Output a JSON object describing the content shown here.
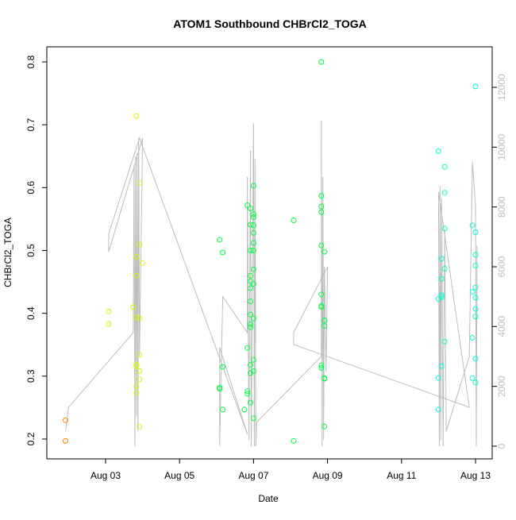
{
  "chart_data": {
    "type": "scatter",
    "title": "ATOM1 Southbound CHBrCl2_TOGA",
    "xlabel": "Date",
    "ylabel": "CHBrCl2_TOGA",
    "x_ticks": [
      "Aug 03",
      "Aug 05",
      "Aug 07",
      "Aug 09",
      "Aug 11",
      "Aug 13"
    ],
    "ylim": [
      0.2,
      0.8
    ],
    "y_ticks": [
      "0.2",
      "0.3",
      "0.4",
      "0.5",
      "0.6",
      "0.7",
      "0.8"
    ],
    "y2_range": [
      0,
      12000
    ],
    "y2_ticks": [
      "0",
      "2000",
      "4000",
      "6000",
      "8000",
      "10000",
      "12000"
    ],
    "grid": false,
    "colors": {
      "scatter_scale": [
        "#ff8000",
        "#ccff00",
        "#00ff40",
        "#00ffcc"
      ],
      "altitude_line": "#bdbdbd"
    },
    "series": [
      {
        "values": [
          [
            "2016-08-01 22:00",
            0.23
          ],
          [
            "2016-08-01 22:00",
            0.197
          ],
          [
            "2016-08-03 02:00",
            0.403
          ],
          [
            "2016-08-03 02:00",
            0.383
          ],
          [
            "2016-08-03 20:00",
            0.714
          ],
          [
            "2016-08-03 22:00",
            0.607
          ],
          [
            "2016-08-03 22:00",
            0.51
          ],
          [
            "2016-08-03 20:00",
            0.49
          ],
          [
            "2016-08-04 00:00",
            0.48
          ],
          [
            "2016-08-03 20:00",
            0.46
          ],
          [
            "2016-08-03 18:00",
            0.41
          ],
          [
            "2016-08-03 20:00",
            0.394
          ],
          [
            "2016-08-03 22:00",
            0.392
          ],
          [
            "2016-08-03 22:00",
            0.334
          ],
          [
            "2016-08-03 20:00",
            0.318
          ],
          [
            "2016-08-03 20:00",
            0.316
          ],
          [
            "2016-08-03 22:00",
            0.308
          ],
          [
            "2016-08-03 22:00",
            0.295
          ],
          [
            "2016-08-03 20:00",
            0.284
          ],
          [
            "2016-08-03 20:00",
            0.273
          ],
          [
            "2016-08-03 22:00",
            0.22
          ]
        ]
      },
      {
        "values": [
          [
            "2016-08-06 02:00",
            0.517
          ],
          [
            "2016-08-06 04:00",
            0.497
          ],
          [
            "2016-08-06 04:00",
            0.315
          ],
          [
            "2016-08-06 02:00",
            0.282
          ],
          [
            "2016-08-06 02:00",
            0.28
          ],
          [
            "2016-08-06 04:00",
            0.247
          ],
          [
            "2016-08-06 20:00",
            0.572
          ],
          [
            "2016-08-06 22:00",
            0.567
          ],
          [
            "2016-08-07 00:00",
            0.558
          ],
          [
            "2016-08-07 00:00",
            0.553
          ],
          [
            "2016-08-06 22:00",
            0.541
          ],
          [
            "2016-08-07 00:00",
            0.54
          ],
          [
            "2016-08-07 00:00",
            0.528
          ],
          [
            "2016-08-07 00:00",
            0.512
          ],
          [
            "2016-08-06 22:00",
            0.5
          ],
          [
            "2016-08-07 00:00",
            0.5
          ],
          [
            "2016-08-07 00:00",
            0.47
          ],
          [
            "2016-08-06 22:00",
            0.46
          ],
          [
            "2016-08-06 22:00",
            0.451
          ],
          [
            "2016-08-07 00:00",
            0.447
          ],
          [
            "2016-08-06 22:00",
            0.44
          ],
          [
            "2016-08-06 22:00",
            0.419
          ],
          [
            "2016-08-06 22:00",
            0.398
          ],
          [
            "2016-08-07 00:00",
            0.392
          ],
          [
            "2016-08-06 22:00",
            0.383
          ],
          [
            "2016-08-06 22:00",
            0.378
          ],
          [
            "2016-08-06 20:00",
            0.345
          ],
          [
            "2016-08-07 00:00",
            0.326
          ],
          [
            "2016-08-06 22:00",
            0.318
          ],
          [
            "2016-08-07 00:00",
            0.308
          ],
          [
            "2016-08-06 22:00",
            0.305
          ],
          [
            "2016-08-06 20:00",
            0.276
          ],
          [
            "2016-08-06 20:00",
            0.272
          ],
          [
            "2016-08-06 22:00",
            0.258
          ],
          [
            "2016-08-06 18:00",
            0.247
          ],
          [
            "2016-08-07 00:00",
            0.233
          ],
          [
            "2016-08-07 00:00",
            0.603
          ],
          [
            "2016-08-08 02:00",
            0.548
          ],
          [
            "2016-08-08 02:00",
            0.197
          ],
          [
            "2016-08-08 20:00",
            0.8
          ],
          [
            "2016-08-08 20:00",
            0.587
          ],
          [
            "2016-08-08 20:00",
            0.57
          ],
          [
            "2016-08-08 20:00",
            0.561
          ],
          [
            "2016-08-08 20:00",
            0.508
          ],
          [
            "2016-08-08 22:00",
            0.498
          ],
          [
            "2016-08-08 20:00",
            0.43
          ],
          [
            "2016-08-08 20:00",
            0.412
          ],
          [
            "2016-08-08 20:00",
            0.41
          ],
          [
            "2016-08-08 22:00",
            0.389
          ],
          [
            "2016-08-08 22:00",
            0.38
          ],
          [
            "2016-08-08 20:00",
            0.317
          ],
          [
            "2016-08-08 20:00",
            0.313
          ],
          [
            "2016-08-08 22:00",
            0.297
          ],
          [
            "2016-08-08 22:00",
            0.296
          ],
          [
            "2016-08-08 22:00",
            0.22
          ]
        ]
      },
      {
        "values": [
          [
            "2016-08-12 00:00",
            0.658
          ],
          [
            "2016-08-12 04:00",
            0.633
          ],
          [
            "2016-08-12 04:00",
            0.592
          ],
          [
            "2016-08-12 04:00",
            0.535
          ],
          [
            "2016-08-12 02:00",
            0.487
          ],
          [
            "2016-08-12 04:00",
            0.471
          ],
          [
            "2016-08-12 02:00",
            0.455
          ],
          [
            "2016-08-12 02:00",
            0.429
          ],
          [
            "2016-08-12 02:00",
            0.426
          ],
          [
            "2016-08-12 00:00",
            0.423
          ],
          [
            "2016-08-12 04:00",
            0.355
          ],
          [
            "2016-08-12 02:00",
            0.316
          ],
          [
            "2016-08-12 00:00",
            0.297
          ],
          [
            "2016-08-12 00:00",
            0.247
          ],
          [
            "2016-08-13 00:00",
            0.761
          ],
          [
            "2016-08-12 22:00",
            0.54
          ],
          [
            "2016-08-13 00:00",
            0.529
          ],
          [
            "2016-08-13 00:00",
            0.493
          ],
          [
            "2016-08-13 00:00",
            0.476
          ],
          [
            "2016-08-13 00:00",
            0.441
          ],
          [
            "2016-08-12 22:00",
            0.434
          ],
          [
            "2016-08-13 00:00",
            0.425
          ],
          [
            "2016-08-13 00:00",
            0.407
          ],
          [
            "2016-08-13 00:00",
            0.395
          ],
          [
            "2016-08-12 22:00",
            0.361
          ],
          [
            "2016-08-13 00:00",
            0.328
          ],
          [
            "2016-08-12 22:00",
            0.297
          ],
          [
            "2016-08-13 00:00",
            0.29
          ]
        ]
      },
      {
        "type": "line",
        "axis": "right",
        "values": [
          [
            "2016-08-01 22:00",
            500
          ],
          [
            "2016-08-02 00:00",
            1300
          ],
          [
            "2016-08-03 18:00",
            3800
          ],
          [
            "2016-08-03 18:30",
            9400
          ],
          [
            "2016-08-03 19:00",
            0
          ],
          [
            "2016-08-03 19:30",
            9700
          ],
          [
            "2016-08-03 20:00",
            1000
          ],
          [
            "2016-08-03 20:30",
            9800
          ],
          [
            "2016-08-03 21:00",
            500
          ],
          [
            "2016-08-03 21:30",
            10300
          ],
          [
            "2016-08-03 22:00",
            3000
          ],
          [
            "2016-08-04 00:00",
            10300
          ],
          [
            "2016-08-03 02:00",
            6500
          ],
          [
            "2016-08-03 02:00",
            7100
          ],
          [
            "2016-08-03 22:00",
            10300
          ],
          [
            "2016-08-06 20:00",
            400
          ],
          [
            "2016-08-06 02:00",
            3300
          ],
          [
            "2016-08-06 02:00",
            0
          ],
          [
            "2016-08-06 04:00",
            5000
          ],
          [
            "2016-08-06 20:00",
            3800
          ],
          [
            "2016-08-06 20:00",
            9000
          ],
          [
            "2016-08-06 21:00",
            200
          ],
          [
            "2016-08-06 22:00",
            9900
          ],
          [
            "2016-08-06 22:30",
            0
          ],
          [
            "2016-08-07 00:00",
            10800
          ],
          [
            "2016-08-07 00:30",
            0
          ],
          [
            "2016-08-07 01:00",
            9600
          ],
          [
            "2016-08-07 01:30",
            0
          ],
          [
            "2016-08-07 02:00",
            800
          ],
          [
            "2016-08-08 20:00",
            3000
          ],
          [
            "2016-08-08 20:00",
            10900
          ],
          [
            "2016-08-08 20:30",
            0
          ],
          [
            "2016-08-08 21:00",
            9000
          ],
          [
            "2016-08-08 21:30",
            200
          ],
          [
            "2016-08-08 22:00",
            6000
          ],
          [
            "2016-08-08 23:00",
            2500
          ],
          [
            "2016-08-09 00:00",
            6000
          ],
          [
            "2016-08-08 02:00",
            3800
          ],
          [
            "2016-08-08 02:00",
            3400
          ],
          [
            "2016-08-12 20:00",
            1300
          ],
          [
            "2016-08-12 00:00",
            8500
          ],
          [
            "2016-08-12 00:30",
            0
          ],
          [
            "2016-08-12 01:00",
            8700
          ],
          [
            "2016-08-12 01:30",
            200
          ],
          [
            "2016-08-12 02:00",
            8300
          ],
          [
            "2016-08-12 03:00",
            0
          ],
          [
            "2016-08-12 04:00",
            7200
          ],
          [
            "2016-08-12 05:00",
            500
          ],
          [
            "2016-08-12 20:00",
            3000
          ],
          [
            "2016-08-12 22:00",
            9500
          ],
          [
            "2016-08-13 00:00",
            8000
          ],
          [
            "2016-08-13 00:30",
            0
          ],
          [
            "2016-08-13 01:00",
            6700
          ]
        ]
      }
    ]
  }
}
